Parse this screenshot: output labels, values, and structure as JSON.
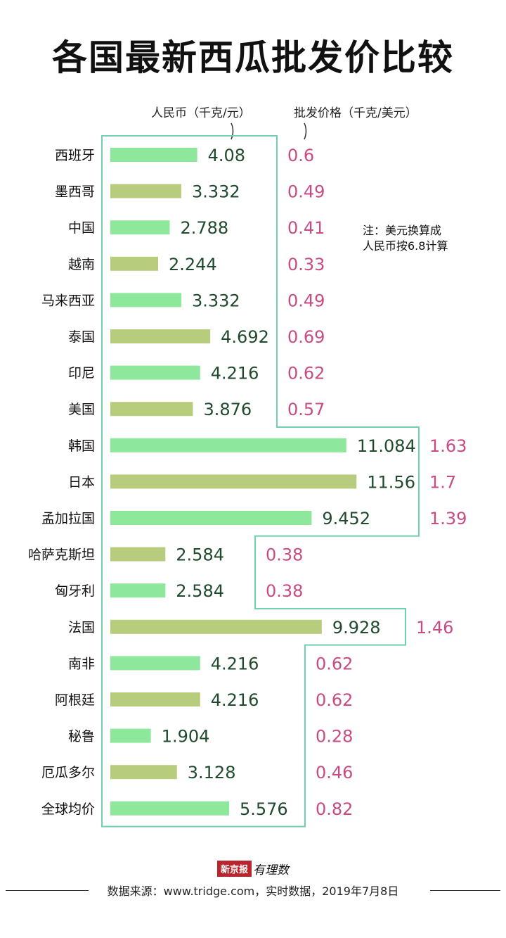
{
  "title": "各国最新西瓜批发价比较",
  "headers": {
    "rmb": "人民币（千克/元）",
    "usd": "批发价格（千克/美元）"
  },
  "note": {
    "line1": "注：美元换算成",
    "line2": "人民币按6.8计算"
  },
  "chart_data": {
    "type": "bar",
    "orientation": "horizontal",
    "title": "各国最新西瓜批发价比较",
    "categories": [
      "西班牙",
      "墨西哥",
      "中国",
      "越南",
      "马来西亚",
      "泰国",
      "印尼",
      "美国",
      "韩国",
      "日本",
      "孟加拉国",
      "哈萨克斯坦",
      "匈牙利",
      "法国",
      "南非",
      "阿根廷",
      "秘鲁",
      "厄瓜多尔",
      "全球均价"
    ],
    "series": [
      {
        "name": "人民币（千克/元）",
        "values": [
          4.08,
          3.332,
          2.788,
          2.244,
          3.332,
          4.692,
          4.216,
          3.876,
          11.084,
          11.56,
          9.452,
          2.584,
          2.584,
          9.928,
          4.216,
          4.216,
          1.904,
          3.128,
          5.576
        ],
        "labels": [
          "4.08",
          "3.332",
          "2.788",
          "2.244",
          "3.332",
          "4.692",
          "4.216",
          "3.876",
          "11.084",
          "11.56",
          "9.452",
          "2.584",
          "2.584",
          "9.928",
          "4.216",
          "4.216",
          "1.904",
          "3.128",
          "5.576"
        ]
      },
      {
        "name": "批发价格（千克/美元）",
        "values": [
          0.6,
          0.49,
          0.41,
          0.33,
          0.49,
          0.69,
          0.62,
          0.57,
          1.63,
          1.7,
          1.39,
          0.38,
          0.38,
          1.46,
          0.62,
          0.62,
          0.28,
          0.46,
          0.82
        ],
        "labels": [
          "0.6",
          "0.49",
          "0.41",
          "0.33",
          "0.49",
          "0.69",
          "0.62",
          "0.57",
          "1.63",
          "1.7",
          "1.39",
          "0.38",
          "0.38",
          "1.46",
          "0.62",
          "0.62",
          "0.28",
          "0.46",
          "0.82"
        ]
      }
    ],
    "bar_colors": [
      "#8de89b",
      "#b7cc7c"
    ],
    "outline_color": "#72d0b1",
    "usd_label_color": "#c84b84",
    "value_label_color": "#1f4a2c"
  },
  "footer": {
    "logo_box": "新京报",
    "logo_text": "有理数",
    "source": "数据来源：www.tridge.com，实时数据，2019年7月8日"
  }
}
